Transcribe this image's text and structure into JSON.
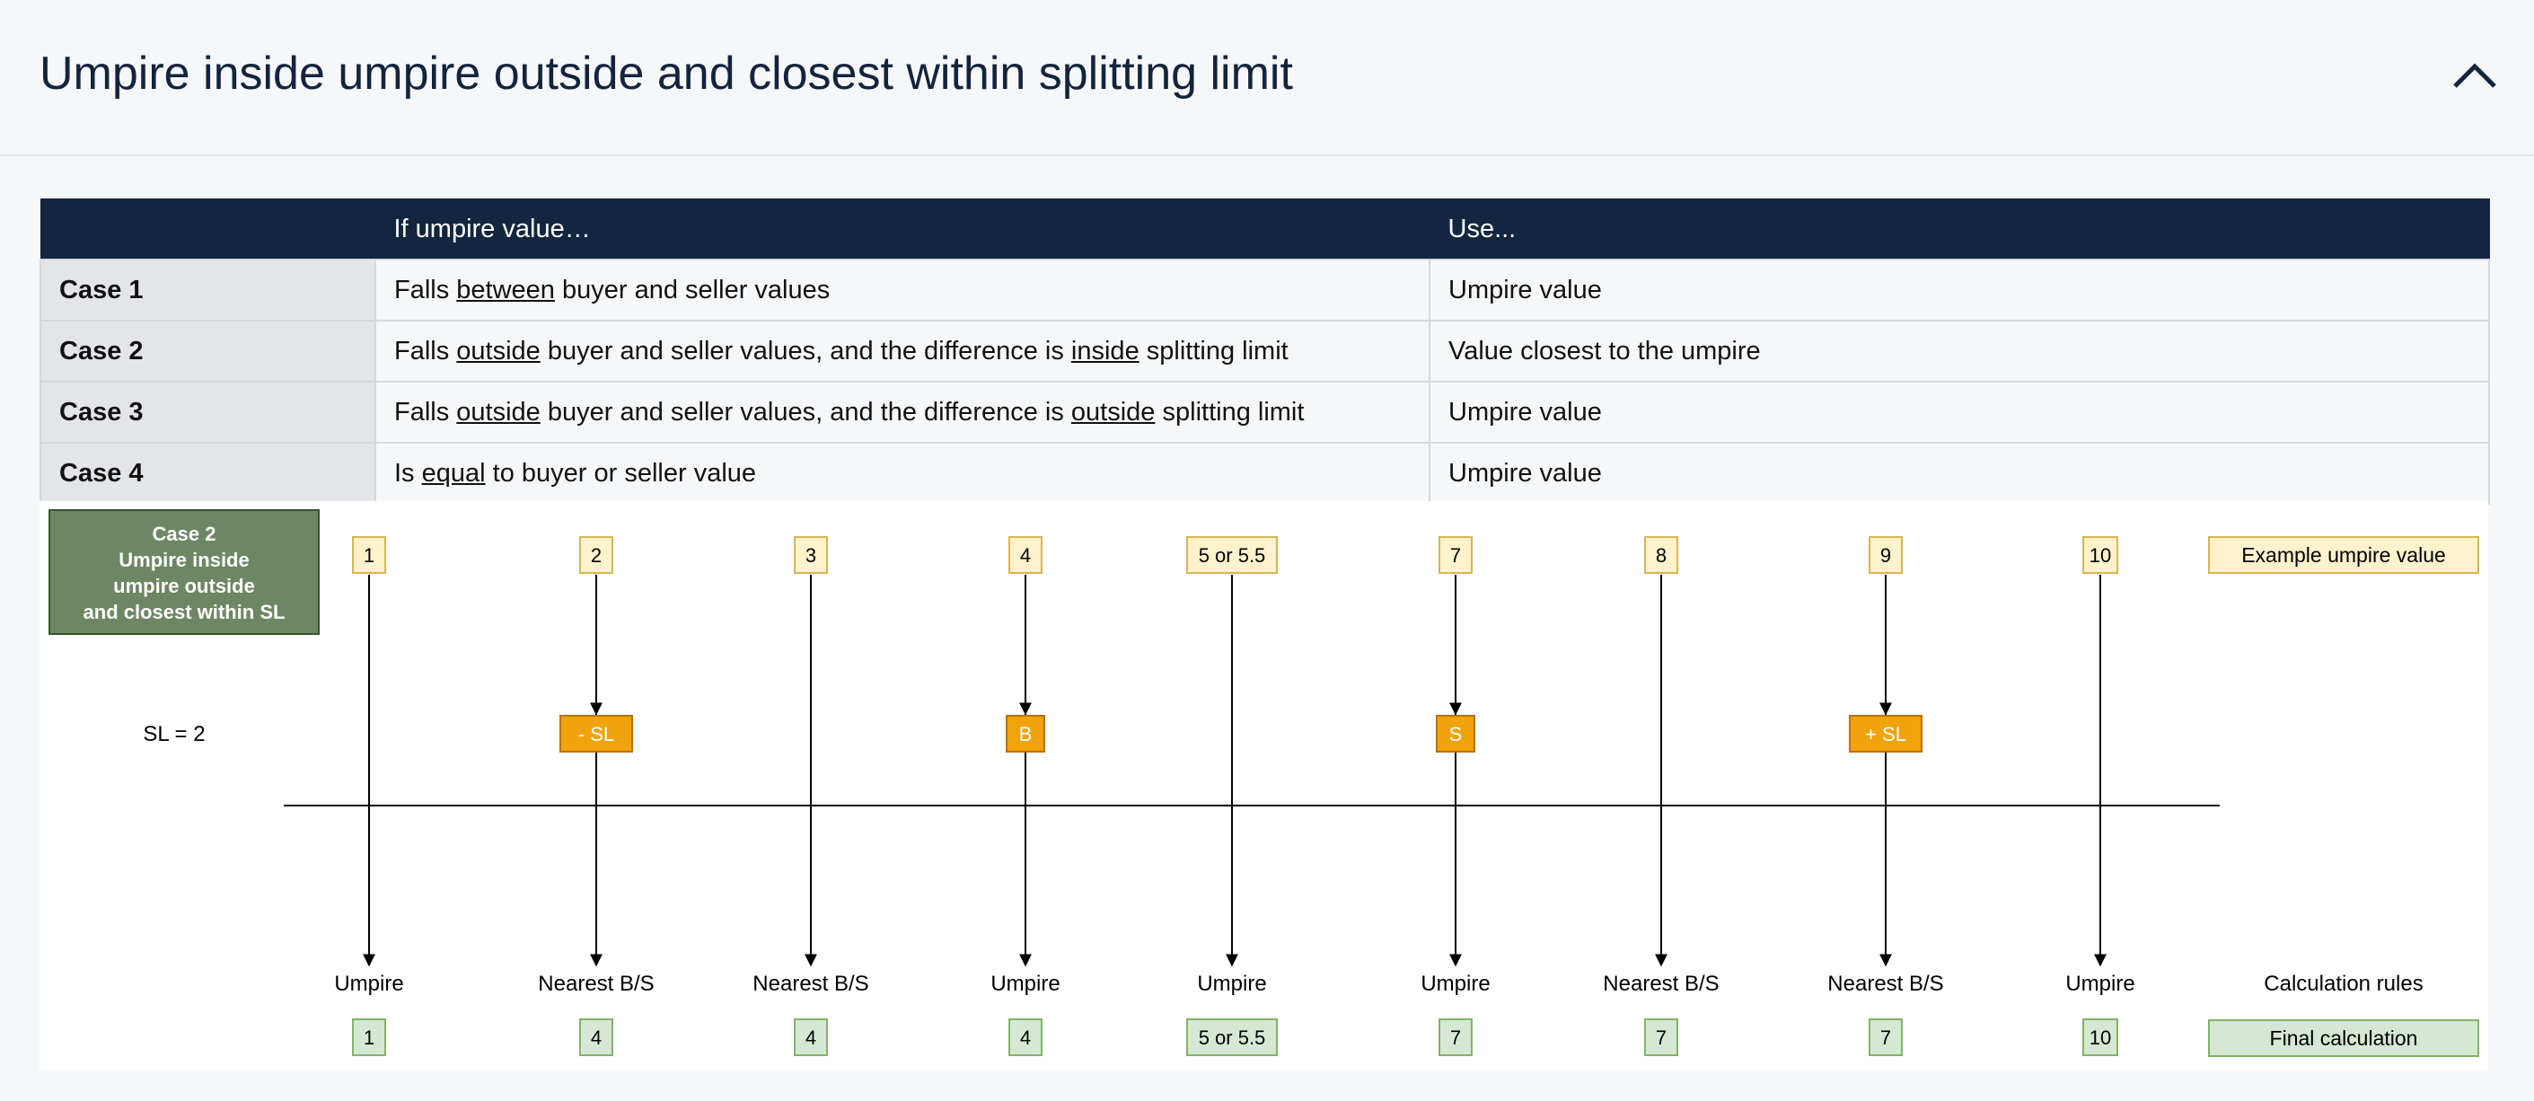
{
  "header": {
    "title": "Umpire inside umpire outside and closest within splitting limit",
    "collapse_icon": "chevron-up-icon"
  },
  "table": {
    "headers": [
      "",
      "If umpire value…",
      "Use..."
    ],
    "rows": [
      {
        "case": "Case 1",
        "condition": [
          [
            "Falls ",
            false
          ],
          [
            "between",
            true
          ],
          [
            " buyer and seller values",
            false
          ]
        ],
        "use": "Umpire value"
      },
      {
        "case": "Case 2",
        "condition": [
          [
            "Falls ",
            false
          ],
          [
            "outside",
            true
          ],
          [
            " buyer and seller values, and the difference is ",
            false
          ],
          [
            "inside",
            true
          ],
          [
            " splitting limit",
            false
          ]
        ],
        "use": "Value closest to the umpire"
      },
      {
        "case": "Case 3",
        "condition": [
          [
            "Falls ",
            false
          ],
          [
            "outside",
            true
          ],
          [
            " buyer and seller values, and the difference is ",
            false
          ],
          [
            "outside",
            true
          ],
          [
            " splitting limit",
            false
          ]
        ],
        "use": "Umpire value"
      },
      {
        "case": "Case 4",
        "condition": [
          [
            "Is ",
            false
          ],
          [
            "equal",
            true
          ],
          [
            " to buyer or seller value",
            false
          ]
        ],
        "use": "Umpire value"
      }
    ]
  },
  "diagram": {
    "case_box": [
      "Case 2",
      "Umpire inside",
      "umpire outside",
      "and closest within SL"
    ],
    "sl_label": "SL = 2",
    "example_label": "Example umpire value",
    "rules_label": "Calculation rules",
    "final_label": "Final calculation",
    "columns": [
      {
        "value": "1",
        "marker": "",
        "rule": "Umpire",
        "final": "1"
      },
      {
        "value": "2",
        "marker": "- SL",
        "rule": "Nearest B/S",
        "final": "4"
      },
      {
        "value": "3",
        "marker": "",
        "rule": "Nearest B/S",
        "final": "4"
      },
      {
        "value": "4",
        "marker": "B",
        "rule": "Umpire",
        "final": "4"
      },
      {
        "value": "5 or 5.5",
        "marker": "",
        "rule": "Umpire",
        "final": "5 or 5.5"
      },
      {
        "value": "7",
        "marker": "S",
        "rule": "Umpire",
        "final": "7"
      },
      {
        "value": "8",
        "marker": "",
        "rule": "Nearest B/S",
        "final": "7"
      },
      {
        "value": "9",
        "marker": "+ SL",
        "rule": "Nearest B/S",
        "final": "7"
      },
      {
        "value": "10",
        "marker": "",
        "rule": "Umpire",
        "final": "10"
      }
    ],
    "colors": {
      "value_box_fill": "#fff2cc",
      "value_box_stroke": "#d6b656",
      "final_box_fill": "#d5e8d4",
      "final_box_stroke": "#82b366",
      "marker_fill": "#f0a30a",
      "marker_stroke": "#bd7000",
      "case_box_fill": "#6d8764",
      "case_box_stroke": "#3a5431"
    }
  }
}
